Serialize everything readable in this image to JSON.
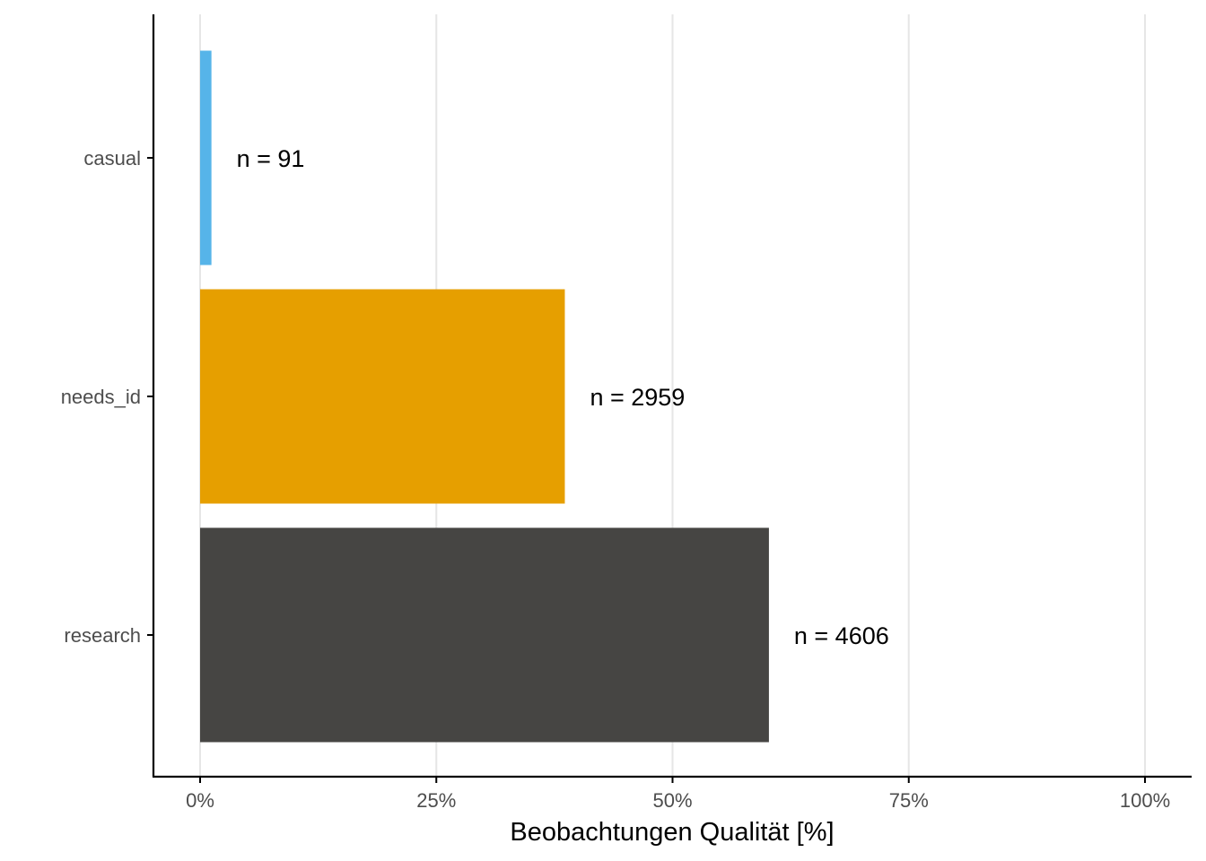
{
  "chart_data": {
    "type": "bar",
    "orientation": "horizontal",
    "categories": [
      "casual",
      "needs_id",
      "research"
    ],
    "values": [
      1.2,
      38.6,
      60.2
    ],
    "value_unit": "%",
    "labels": [
      "n = 91",
      "n = 2959",
      "n = 4606"
    ],
    "colors": [
      "#56B4E9",
      "#E69F00",
      "#464543"
    ],
    "xlabel": "Beobachtungen Qualität [%]",
    "ylabel": "",
    "xlim": [
      0,
      100
    ],
    "xticks": [
      0,
      25,
      50,
      75,
      100
    ],
    "xtick_labels": [
      "0%",
      "25%",
      "50%",
      "75%",
      "100%"
    ],
    "grid": "vertical-major",
    "legend": "none"
  }
}
